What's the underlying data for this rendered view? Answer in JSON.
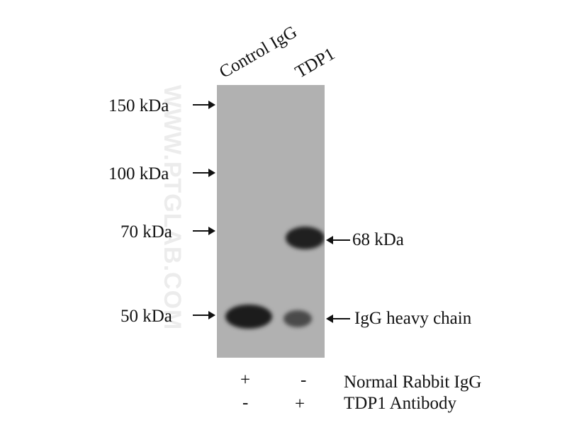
{
  "lanes": [
    "Control IgG",
    "TDP1"
  ],
  "markers": [
    "150 kDa",
    "100 kDa",
    "70 kDa",
    "50 kDa"
  ],
  "band_labels": [
    "68 kDa",
    "IgG heavy chain"
  ],
  "conditions": [
    {
      "label": "Normal Rabbit IgG",
      "values": [
        "+",
        "-"
      ]
    },
    {
      "label": "TDP1 Antibody",
      "values": [
        "-",
        "+"
      ]
    }
  ],
  "watermark": "WWW.PTGLAB.COM",
  "colors": {
    "membrane": "#b1b1b1",
    "band": "#1c1c1c"
  }
}
